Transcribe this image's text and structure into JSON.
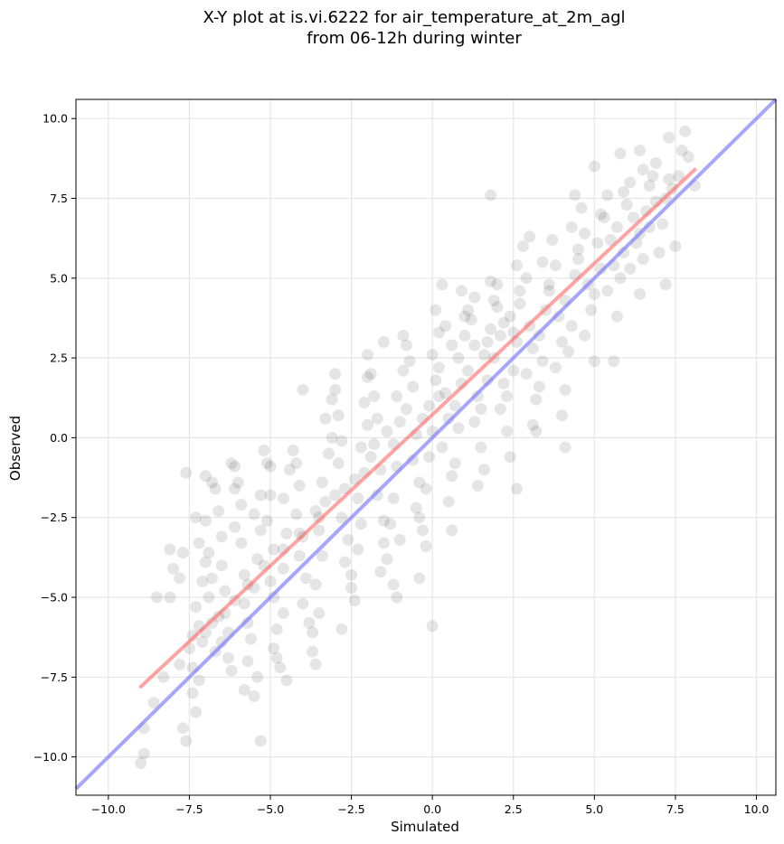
{
  "chart_data": {
    "type": "scatter",
    "title_line1": "X-Y plot at is.vi.6222 for air_temperature_at_2m_agl",
    "title_line2": "from 06-12h during winter",
    "xlabel": "Simulated",
    "ylabel": "Observed",
    "xlim": [
      -11.0,
      10.6
    ],
    "ylim": [
      -11.2,
      10.6
    ],
    "xticks": [
      -10.0,
      -7.5,
      -5.0,
      -2.5,
      0.0,
      2.5,
      5.0,
      7.5,
      10.0
    ],
    "xtick_labels": [
      "−10.0",
      "−7.5",
      "−5.0",
      "−2.5",
      "0.0",
      "2.5",
      "5.0",
      "7.5",
      "10.0"
    ],
    "yticks": [
      -10.0,
      -7.5,
      -5.0,
      -2.5,
      0.0,
      2.5,
      5.0,
      7.5,
      10.0
    ],
    "ytick_labels": [
      "−10.0",
      "−7.5",
      "−5.0",
      "−2.5",
      "0.0",
      "2.5",
      "5.0",
      "7.5",
      "10.0"
    ],
    "grid": true,
    "point_color": "#000000",
    "point_opacity": 0.1,
    "fit_line": {
      "color": "#ff6666",
      "opacity": 0.6,
      "x": [
        -9.0,
        8.1
      ],
      "y": [
        -7.8,
        8.4
      ]
    },
    "identity_line": {
      "color": "#7777ff",
      "opacity": 0.65,
      "x": [
        -11.0,
        10.6
      ],
      "y": [
        -11.0,
        10.6
      ]
    },
    "points": [
      [
        -9.0,
        -10.2
      ],
      [
        -8.9,
        -9.9
      ],
      [
        -8.9,
        -9.1
      ],
      [
        -8.6,
        -8.3
      ],
      [
        -8.3,
        -7.5
      ],
      [
        -8.1,
        -5.0
      ],
      [
        -8.0,
        -4.1
      ],
      [
        -8.1,
        -3.5
      ],
      [
        -7.7,
        -3.6
      ],
      [
        -7.6,
        -1.1
      ],
      [
        -7.6,
        -9.5
      ],
      [
        -7.7,
        -9.1
      ],
      [
        -7.4,
        -8.0
      ],
      [
        -7.3,
        -8.6
      ],
      [
        -7.4,
        -7.2
      ],
      [
        -7.2,
        -7.6
      ],
      [
        -7.4,
        -6.2
      ],
      [
        -7.2,
        -5.9
      ],
      [
        -7.3,
        -5.3
      ],
      [
        -7.1,
        -6.4
      ],
      [
        -7.1,
        -4.5
      ],
      [
        -7.0,
        -3.9
      ],
      [
        -7.2,
        -3.3
      ],
      [
        -7.0,
        -2.6
      ],
      [
        -7.3,
        -2.5
      ],
      [
        -6.9,
        -3.6
      ],
      [
        -6.8,
        -4.4
      ],
      [
        -6.9,
        -5.0
      ],
      [
        -6.8,
        -5.8
      ],
      [
        -6.7,
        -6.7
      ],
      [
        -6.7,
        -1.6
      ],
      [
        -6.8,
        -1.4
      ],
      [
        -7.0,
        -1.2
      ],
      [
        -6.6,
        -2.3
      ],
      [
        -6.5,
        -3.1
      ],
      [
        -6.5,
        -4.0
      ],
      [
        -6.4,
        -4.8
      ],
      [
        -6.4,
        -5.5
      ],
      [
        -6.3,
        -6.1
      ],
      [
        -6.5,
        -6.4
      ],
      [
        -6.3,
        -6.9
      ],
      [
        -6.2,
        -7.3
      ],
      [
        -6.1,
        -2.8
      ],
      [
        -6.1,
        -1.6
      ],
      [
        -6.0,
        -1.4
      ],
      [
        -6.1,
        -0.9
      ],
      [
        -5.9,
        -2.1
      ],
      [
        -5.9,
        -3.3
      ],
      [
        -5.8,
        -4.3
      ],
      [
        -5.8,
        -5.2
      ],
      [
        -5.7,
        -5.8
      ],
      [
        -5.6,
        -6.3
      ],
      [
        -5.7,
        -7.0
      ],
      [
        -5.8,
        -7.9
      ],
      [
        -5.5,
        -8.1
      ],
      [
        -5.4,
        -7.5
      ],
      [
        -5.5,
        -4.7
      ],
      [
        -5.4,
        -3.8
      ],
      [
        -5.3,
        -2.9
      ],
      [
        -5.5,
        -2.4
      ],
      [
        -5.3,
        -1.8
      ],
      [
        -5.1,
        -0.8
      ],
      [
        -5.2,
        -0.4
      ],
      [
        -5.0,
        -0.9
      ],
      [
        -5.0,
        -1.8
      ],
      [
        -5.1,
        -2.6
      ],
      [
        -4.9,
        -3.5
      ],
      [
        -5.0,
        -4.5
      ],
      [
        -4.9,
        -5.0
      ],
      [
        -4.8,
        -6.0
      ],
      [
        -4.9,
        -6.6
      ],
      [
        -4.7,
        -7.2
      ],
      [
        -4.5,
        -7.6
      ],
      [
        -4.8,
        -6.9
      ],
      [
        -4.6,
        -5.5
      ],
      [
        -4.6,
        -4.1
      ],
      [
        -4.5,
        -3.0
      ],
      [
        -4.6,
        -1.9
      ],
      [
        -4.4,
        -1.0
      ],
      [
        -4.3,
        -0.4
      ],
      [
        -4.2,
        -0.8
      ],
      [
        -4.1,
        -1.5
      ],
      [
        -4.2,
        -2.4
      ],
      [
        -4.0,
        -3.1
      ],
      [
        -4.1,
        -3.7
      ],
      [
        -3.9,
        -4.4
      ],
      [
        -4.0,
        -5.2
      ],
      [
        -3.8,
        -5.8
      ],
      [
        -3.7,
        -6.7
      ],
      [
        -3.6,
        -7.1
      ],
      [
        -3.7,
        -6.1
      ],
      [
        -3.5,
        -5.5
      ],
      [
        -3.6,
        -4.6
      ],
      [
        -3.4,
        -3.7
      ],
      [
        -3.5,
        -2.9
      ],
      [
        -3.3,
        -2.0
      ],
      [
        -3.4,
        -1.4
      ],
      [
        -3.2,
        -0.5
      ],
      [
        -3.1,
        0.0
      ],
      [
        -3.3,
        0.6
      ],
      [
        -3.1,
        1.2
      ],
      [
        -3.0,
        2.0
      ],
      [
        -3.0,
        1.5
      ],
      [
        -2.9,
        0.7
      ],
      [
        -2.8,
        -0.1
      ],
      [
        -2.9,
        -0.8
      ],
      [
        -2.7,
        -1.6
      ],
      [
        -2.8,
        -2.5
      ],
      [
        -2.6,
        -3.2
      ],
      [
        -2.7,
        -3.9
      ],
      [
        -2.5,
        -4.3
      ],
      [
        -2.4,
        -5.1
      ],
      [
        -2.5,
        -4.7
      ],
      [
        -2.3,
        -3.5
      ],
      [
        -2.2,
        -2.7
      ],
      [
        -2.3,
        -1.9
      ],
      [
        -2.1,
        -1.1
      ],
      [
        -2.2,
        -0.3
      ],
      [
        -2.0,
        0.4
      ],
      [
        -2.1,
        1.1
      ],
      [
        -2.0,
        1.9
      ],
      [
        -1.9,
        2.0
      ],
      [
        -1.8,
        1.3
      ],
      [
        -1.7,
        0.6
      ],
      [
        -1.8,
        -0.2
      ],
      [
        -1.6,
        -1.0
      ],
      [
        -1.7,
        -1.8
      ],
      [
        -1.5,
        -2.6
      ],
      [
        -1.5,
        -3.3
      ],
      [
        -1.4,
        -3.8
      ],
      [
        -1.6,
        -4.2
      ],
      [
        -1.2,
        -4.6
      ],
      [
        -1.1,
        -5.0
      ],
      [
        -1.3,
        -2.7
      ],
      [
        -1.2,
        -1.9
      ],
      [
        -1.1,
        -0.9
      ],
      [
        -1.2,
        -0.2
      ],
      [
        -1.0,
        0.5
      ],
      [
        -1.1,
        1.3
      ],
      [
        -0.9,
        2.1
      ],
      [
        -0.8,
        2.9
      ],
      [
        -0.9,
        3.2
      ],
      [
        -0.7,
        2.4
      ],
      [
        -0.6,
        1.6
      ],
      [
        -0.8,
        0.9
      ],
      [
        -0.5,
        0.1
      ],
      [
        -0.6,
        -0.7
      ],
      [
        -0.4,
        -1.4
      ],
      [
        -0.5,
        -2.2
      ],
      [
        -0.3,
        -2.9
      ],
      [
        -0.2,
        -3.4
      ],
      [
        -0.4,
        -2.5
      ],
      [
        -0.2,
        -1.6
      ],
      [
        -0.1,
        -0.6
      ],
      [
        0.0,
        0.2
      ],
      [
        -0.1,
        1.0
      ],
      [
        0.1,
        1.8
      ],
      [
        0.0,
        2.6
      ],
      [
        0.2,
        3.3
      ],
      [
        0.1,
        4.0
      ],
      [
        0.3,
        4.8
      ],
      [
        0.4,
        3.5
      ],
      [
        0.2,
        2.2
      ],
      [
        0.4,
        1.4
      ],
      [
        0.5,
        0.6
      ],
      [
        0.3,
        -0.3
      ],
      [
        0.6,
        -1.2
      ],
      [
        0.5,
        -2.0
      ],
      [
        0.7,
        -0.8
      ],
      [
        0.8,
        0.3
      ],
      [
        0.7,
        1.0
      ],
      [
        0.9,
        1.7
      ],
      [
        0.8,
        2.5
      ],
      [
        1.0,
        3.2
      ],
      [
        1.1,
        4.0
      ],
      [
        0.9,
        4.6
      ],
      [
        1.2,
        3.7
      ],
      [
        1.3,
        2.9
      ],
      [
        1.1,
        2.1
      ],
      [
        1.4,
        1.3
      ],
      [
        1.3,
        0.5
      ],
      [
        1.5,
        -0.3
      ],
      [
        1.6,
        -1.0
      ],
      [
        1.5,
        0.9
      ],
      [
        1.7,
        1.8
      ],
      [
        1.6,
        2.6
      ],
      [
        1.8,
        3.4
      ],
      [
        1.9,
        4.3
      ],
      [
        1.8,
        4.9
      ],
      [
        2.0,
        4.1
      ],
      [
        2.1,
        3.2
      ],
      [
        1.9,
        2.5
      ],
      [
        2.2,
        1.7
      ],
      [
        2.1,
        0.9
      ],
      [
        2.3,
        0.2
      ],
      [
        2.4,
        -0.6
      ],
      [
        2.3,
        1.3
      ],
      [
        2.5,
        2.1
      ],
      [
        2.6,
        3.0
      ],
      [
        2.4,
        3.8
      ],
      [
        2.7,
        4.6
      ],
      [
        2.6,
        5.4
      ],
      [
        2.8,
        6.0
      ],
      [
        2.9,
        5.0
      ],
      [
        2.7,
        4.2
      ],
      [
        3.0,
        3.5
      ],
      [
        3.1,
        2.8
      ],
      [
        2.9,
        2.0
      ],
      [
        3.2,
        1.2
      ],
      [
        3.1,
        0.4
      ],
      [
        3.3,
        1.6
      ],
      [
        3.4,
        2.4
      ],
      [
        3.3,
        3.2
      ],
      [
        3.5,
        4.0
      ],
      [
        3.6,
        4.8
      ],
      [
        3.4,
        5.5
      ],
      [
        3.7,
        6.2
      ],
      [
        3.8,
        5.4
      ],
      [
        3.6,
        4.6
      ],
      [
        3.9,
        3.8
      ],
      [
        4.0,
        3.0
      ],
      [
        3.8,
        2.2
      ],
      [
        4.1,
        1.5
      ],
      [
        4.0,
        0.7
      ],
      [
        4.2,
        2.7
      ],
      [
        4.3,
        3.5
      ],
      [
        4.1,
        4.3
      ],
      [
        4.4,
        5.1
      ],
      [
        4.5,
        5.9
      ],
      [
        4.3,
        6.6
      ],
      [
        4.6,
        7.2
      ],
      [
        4.7,
        6.4
      ],
      [
        4.5,
        5.6
      ],
      [
        4.8,
        4.8
      ],
      [
        4.9,
        4.0
      ],
      [
        4.7,
        3.2
      ],
      [
        5.0,
        2.4
      ],
      [
        5.0,
        4.5
      ],
      [
        5.2,
        5.3
      ],
      [
        5.1,
        6.1
      ],
      [
        5.3,
        6.9
      ],
      [
        5.4,
        7.6
      ],
      [
        5.2,
        7.0
      ],
      [
        5.5,
        6.2
      ],
      [
        5.6,
        5.4
      ],
      [
        5.4,
        4.6
      ],
      [
        5.7,
        3.8
      ],
      [
        5.8,
        5.0
      ],
      [
        5.9,
        5.8
      ],
      [
        5.7,
        6.6
      ],
      [
        6.0,
        7.3
      ],
      [
        6.1,
        8.0
      ],
      [
        5.9,
        7.7
      ],
      [
        6.2,
        6.9
      ],
      [
        6.3,
        6.1
      ],
      [
        6.1,
        5.3
      ],
      [
        6.4,
        4.5
      ],
      [
        6.5,
        5.6
      ],
      [
        6.4,
        6.4
      ],
      [
        6.6,
        7.1
      ],
      [
        6.7,
        7.9
      ],
      [
        6.5,
        8.4
      ],
      [
        6.8,
        8.2
      ],
      [
        6.9,
        7.4
      ],
      [
        6.7,
        6.6
      ],
      [
        7.0,
        5.8
      ],
      [
        7.1,
        6.7
      ],
      [
        7.2,
        7.5
      ],
      [
        7.3,
        8.1
      ],
      [
        7.4,
        7.8
      ],
      [
        7.6,
        8.2
      ],
      [
        7.7,
        9.0
      ],
      [
        7.8,
        9.6
      ],
      [
        7.9,
        8.8
      ],
      [
        8.1,
        7.9
      ],
      [
        6.4,
        9.0
      ],
      [
        7.2,
        4.8
      ],
      [
        7.5,
        6.0
      ],
      [
        5.6,
        2.4
      ],
      [
        4.1,
        -0.3
      ],
      [
        3.2,
        0.2
      ],
      [
        0.0,
        -5.9
      ],
      [
        -0.4,
        -4.4
      ],
      [
        1.8,
        7.6
      ],
      [
        2.6,
        -1.6
      ],
      [
        -5.3,
        -9.5
      ],
      [
        -2.0,
        2.6
      ],
      [
        -1.5,
        3.0
      ],
      [
        -4.0,
        1.5
      ],
      [
        -6.2,
        -0.8
      ],
      [
        -7.8,
        -4.4
      ],
      [
        -8.5,
        -5.0
      ],
      [
        -3.6,
        -2.3
      ],
      [
        -2.8,
        -6.0
      ],
      [
        -1.0,
        -3.2
      ],
      [
        0.6,
        -2.9
      ],
      [
        1.4,
        -1.5
      ],
      [
        2.0,
        4.8
      ],
      [
        3.0,
        6.3
      ],
      [
        4.4,
        7.6
      ],
      [
        5.0,
        8.5
      ],
      [
        5.8,
        8.9
      ],
      [
        6.9,
        8.6
      ],
      [
        7.3,
        9.4
      ],
      [
        1.0,
        3.8
      ],
      [
        1.3,
        4.4
      ],
      [
        1.7,
        3.0
      ],
      [
        2.2,
        3.6
      ],
      [
        2.5,
        3.3
      ],
      [
        0.6,
        2.9
      ],
      [
        0.2,
        1.3
      ],
      [
        -0.3,
        0.6
      ],
      [
        -1.4,
        0.2
      ],
      [
        -1.9,
        -0.6
      ],
      [
        -2.4,
        -1.3
      ],
      [
        -3.0,
        -1.8
      ],
      [
        -3.5,
        -2.5
      ],
      [
        -4.1,
        -3.0
      ],
      [
        -4.6,
        -3.5
      ],
      [
        -5.2,
        -4.0
      ],
      [
        -5.7,
        -4.6
      ],
      [
        -6.1,
        -5.1
      ],
      [
        -6.6,
        -5.6
      ],
      [
        -7.0,
        -6.1
      ],
      [
        -7.5,
        -6.6
      ],
      [
        -7.8,
        -7.1
      ]
    ]
  }
}
